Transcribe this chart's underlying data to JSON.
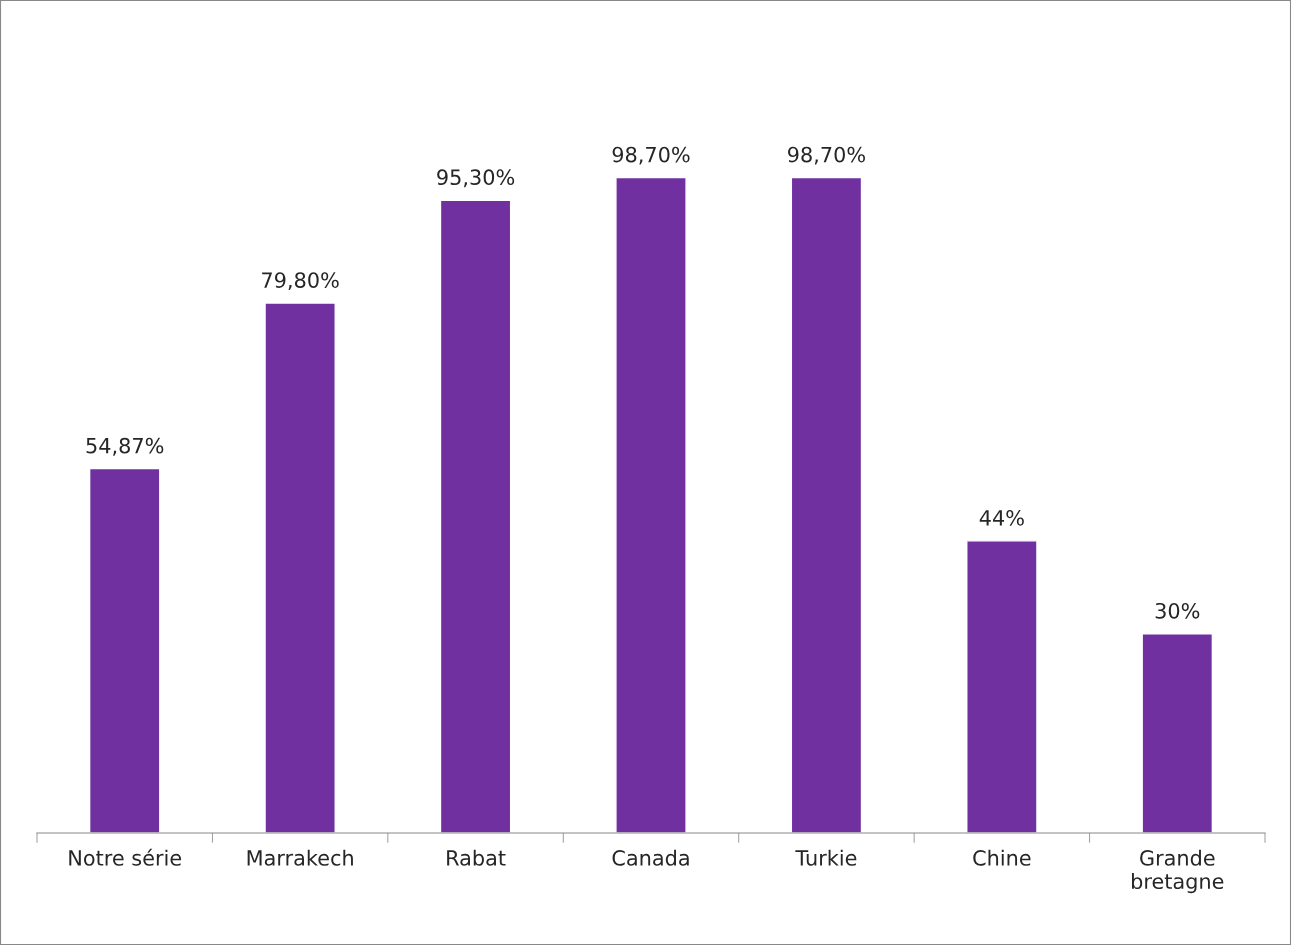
{
  "chart_data": {
    "type": "bar",
    "categories": [
      "Notre série",
      "Marrakech",
      "Rabat",
      "Canada",
      "Turkie",
      "Chine",
      "Grande\nbretagne"
    ],
    "values": [
      54.87,
      79.8,
      95.3,
      98.7,
      98.7,
      44,
      30
    ],
    "value_labels": [
      "54,87%",
      "79,80%",
      "95,30%",
      "98,70%",
      "98,70%",
      "44%",
      "30%"
    ],
    "color": "#7030a0",
    "grid": false,
    "legend": false
  }
}
